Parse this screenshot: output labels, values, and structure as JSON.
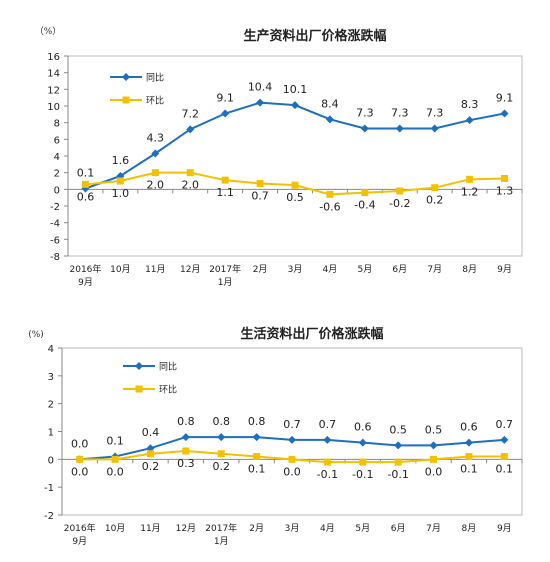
{
  "colors": {
    "yoy": "#1E6FBF",
    "mom": "#F2C200",
    "axis": "#888888",
    "plot_border": "#bbbbbb"
  },
  "chart_data": [
    {
      "type": "line",
      "title": "生产资料出厂价格涨跌幅",
      "unit_label": "（%）",
      "categories": [
        [
          "2016年",
          "9月"
        ],
        [
          "10月"
        ],
        [
          "11月"
        ],
        [
          "12月"
        ],
        [
          "2017年",
          "1月"
        ],
        [
          "2月"
        ],
        [
          "3月"
        ],
        [
          "4月"
        ],
        [
          "5月"
        ],
        [
          "6月"
        ],
        [
          "7月"
        ],
        [
          "8月"
        ],
        [
          "9月"
        ]
      ],
      "ylim": [
        -8,
        16
      ],
      "yticks": [
        -8,
        -6,
        -4,
        -2,
        0,
        2,
        4,
        6,
        8,
        10,
        12,
        14,
        16
      ],
      "legend": "top-left",
      "series": [
        {
          "name": "同比",
          "color": "#1E6FBF",
          "marker": "diamond",
          "values": [
            0.1,
            1.6,
            4.3,
            7.2,
            9.1,
            10.4,
            10.1,
            8.4,
            7.3,
            7.3,
            7.3,
            8.3,
            9.1
          ],
          "labels": [
            "0.1",
            "1.6",
            "4.3",
            "7.2",
            "9.1",
            "10.4",
            "10.1",
            "8.4",
            "7.3",
            "7.3",
            "7.3",
            "8.3",
            "9.1"
          ]
        },
        {
          "name": "环比",
          "color": "#F2C200",
          "marker": "square",
          "values": [
            0.6,
            1.0,
            2.0,
            2.0,
            1.1,
            0.7,
            0.5,
            -0.6,
            -0.4,
            -0.2,
            0.2,
            1.2,
            1.3
          ],
          "labels": [
            "0.6",
            "1.0",
            "2.0",
            "2.0",
            "1.1",
            "0.7",
            "0.5",
            "-0.6",
            "-0.4",
            "-0.2",
            "0.2",
            "1.2",
            "1.3"
          ]
        }
      ]
    },
    {
      "type": "line",
      "title": "生活资料出厂价格涨跌幅",
      "unit_label": "(%)",
      "categories": [
        [
          "2016年",
          "9月"
        ],
        [
          "10月"
        ],
        [
          "11月"
        ],
        [
          "12月"
        ],
        [
          "2017年",
          "1月"
        ],
        [
          "2月"
        ],
        [
          "3月"
        ],
        [
          "4月"
        ],
        [
          "5月"
        ],
        [
          "6月"
        ],
        [
          "7月"
        ],
        [
          "8月"
        ],
        [
          "9月"
        ]
      ],
      "ylim": [
        -2,
        4
      ],
      "yticks": [
        -2,
        -1,
        0,
        1,
        2,
        3,
        4
      ],
      "legend": "top-left",
      "series": [
        {
          "name": "同比",
          "color": "#1E6FBF",
          "marker": "diamond",
          "values": [
            0.0,
            0.1,
            0.4,
            0.8,
            0.8,
            0.8,
            0.7,
            0.7,
            0.6,
            0.5,
            0.5,
            0.6,
            0.7
          ],
          "labels": [
            "0.0",
            "0.1",
            "0.4",
            "0.8",
            "0.8",
            "0.8",
            "0.7",
            "0.7",
            "0.6",
            "0.5",
            "0.5",
            "0.6",
            "0.7"
          ]
        },
        {
          "name": "环比",
          "color": "#F2C200",
          "marker": "square",
          "values": [
            0.0,
            0.0,
            0.2,
            0.3,
            0.2,
            0.1,
            0.0,
            -0.1,
            -0.1,
            -0.1,
            0.0,
            0.1,
            0.1
          ],
          "labels": [
            "0.0",
            "0.0",
            "0.2",
            "0.3",
            "0.2",
            "0.1",
            "0.0",
            "-0.1",
            "-0.1",
            "-0.1",
            "0.0",
            "0.1",
            "0.1"
          ]
        }
      ]
    }
  ]
}
